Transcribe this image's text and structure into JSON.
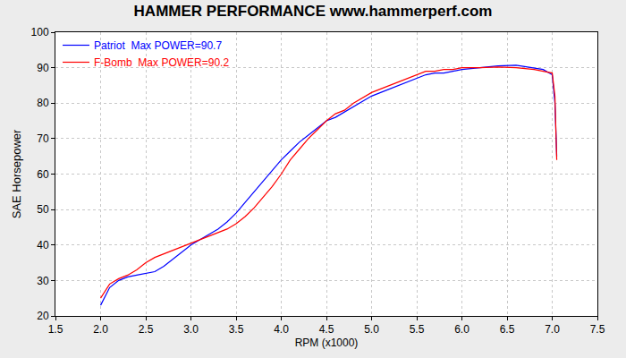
{
  "chart_data": {
    "type": "line",
    "title": "HAMMER PERFORMANCE www.hammerperf.com",
    "x_label": "RPM (x1000)",
    "y_label": "SAE Horsepower",
    "x": [
      2.0,
      2.1,
      2.2,
      2.3,
      2.4,
      2.5,
      2.6,
      2.7,
      2.8,
      2.9,
      3.0,
      3.1,
      3.2,
      3.3,
      3.4,
      3.5,
      3.6,
      3.7,
      3.8,
      3.9,
      4.0,
      4.1,
      4.2,
      4.3,
      4.4,
      4.5,
      4.6,
      4.7,
      4.8,
      4.9,
      5.0,
      5.1,
      5.2,
      5.3,
      5.4,
      5.5,
      5.6,
      5.7,
      5.8,
      5.9,
      6.0,
      6.2,
      6.4,
      6.6,
      6.8,
      6.9,
      7.0,
      7.03,
      7.05
    ],
    "series": [
      {
        "name": "Patriot  Max POWER=90.7",
        "color": "#0000ff",
        "values": [
          23,
          28,
          30,
          31,
          31.5,
          32,
          32.5,
          34,
          36,
          38,
          40,
          41.5,
          43,
          44.5,
          46.5,
          49,
          52,
          55,
          58,
          61,
          64,
          66.5,
          69,
          71,
          73,
          75,
          76,
          77.5,
          79,
          80.5,
          82,
          83,
          84,
          85,
          86,
          87,
          88,
          88.5,
          88.5,
          89,
          89.5,
          90,
          90.5,
          90.7,
          90,
          89.5,
          88,
          80,
          65
        ]
      },
      {
        "name": "F-Bomb  Max POWER=90.2",
        "color": "#ff0000",
        "values": [
          25,
          29,
          30.5,
          31.5,
          33,
          35,
          36.5,
          37.5,
          38.5,
          39.5,
          40.5,
          41.5,
          42.5,
          43.5,
          44.5,
          46,
          48,
          50.5,
          53.5,
          56.5,
          60,
          64,
          67,
          70,
          72.5,
          75,
          77,
          78,
          80,
          81.5,
          83,
          84,
          85,
          86,
          87,
          88,
          89,
          89,
          89.5,
          89.5,
          90,
          90,
          90.2,
          90,
          89.5,
          89,
          88.5,
          82,
          64
        ]
      }
    ],
    "xlim": [
      1.5,
      7.5
    ],
    "xticks": [
      {
        "value": 1.5,
        "label": "1.5"
      },
      {
        "value": 2,
        "label": "2.0"
      },
      {
        "value": 2.5,
        "label": "2.5"
      },
      {
        "value": 3,
        "label": "3.0"
      },
      {
        "value": 3.5,
        "label": "3.5"
      },
      {
        "value": 4,
        "label": "4.0"
      },
      {
        "value": 4.5,
        "label": "4.5"
      },
      {
        "value": 5,
        "label": "5.0"
      },
      {
        "value": 5.5,
        "label": "5.5"
      },
      {
        "value": 6,
        "label": "6.0"
      },
      {
        "value": 6.5,
        "label": "6.5"
      },
      {
        "value": 7,
        "label": "7.0"
      },
      {
        "value": 7.5,
        "label": "7.5"
      }
    ],
    "ylim": [
      20,
      100
    ],
    "yticks": [
      20,
      30,
      40,
      50,
      60,
      70,
      80,
      90,
      100
    ],
    "grid": true,
    "legend": "upper left"
  }
}
